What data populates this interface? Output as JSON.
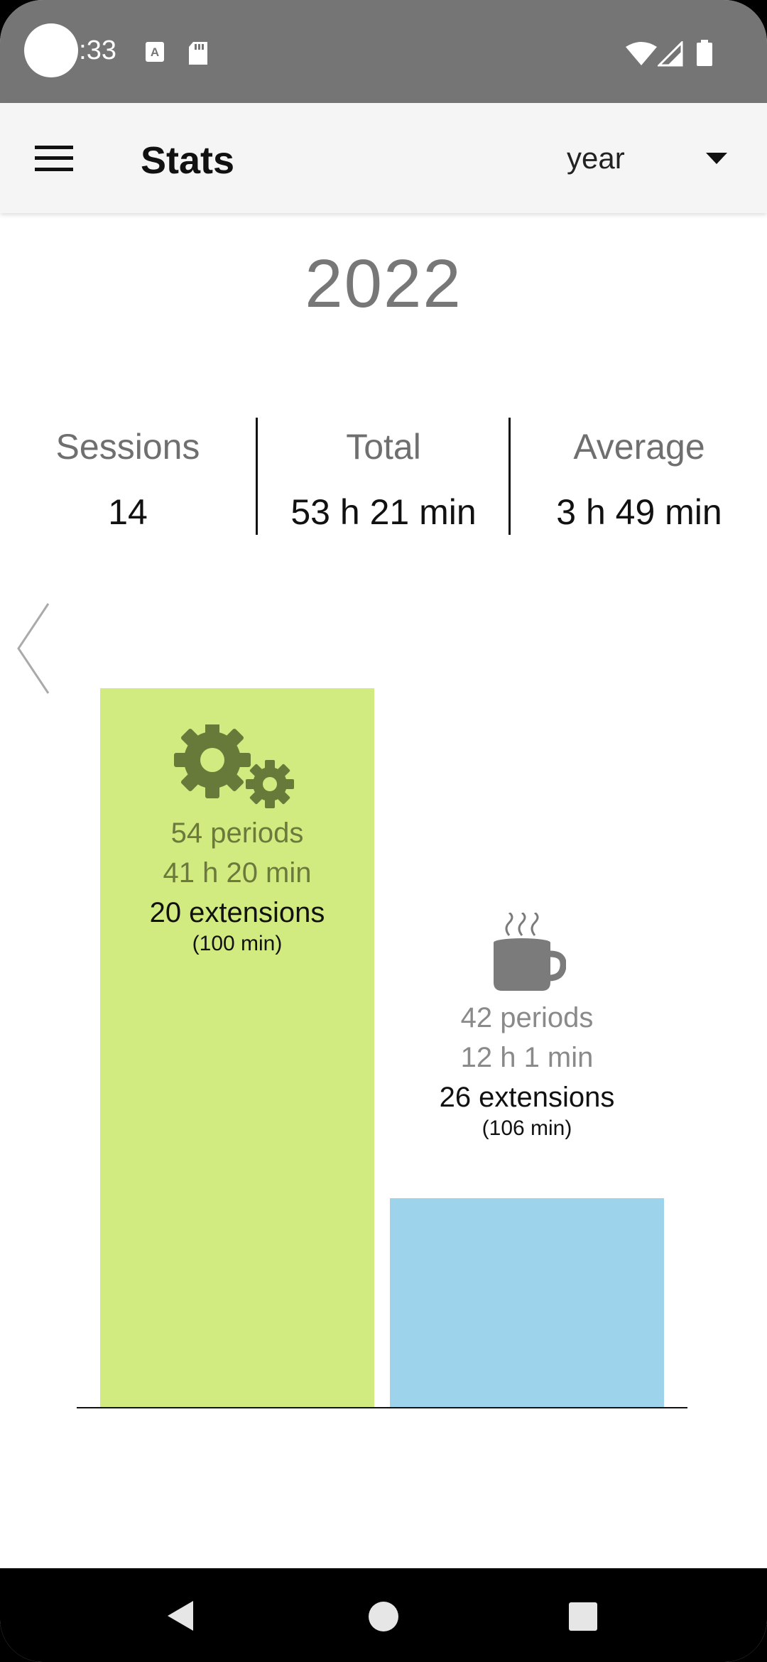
{
  "status_bar": {
    "time": "0:33",
    "icons": [
      "a-notification-icon",
      "sd-card-icon",
      "wifi-icon",
      "signal-icon",
      "battery-icon"
    ]
  },
  "app_bar": {
    "title": "Stats",
    "menu_icon": "hamburger-menu-icon",
    "period_select": {
      "value": "year"
    }
  },
  "period_title": "2022",
  "summary": {
    "sessions": {
      "label": "Sessions",
      "value": "14"
    },
    "total": {
      "label": "Total",
      "value": "53 h 21 min"
    },
    "average": {
      "label": "Average",
      "value": "3 h 49 min"
    }
  },
  "chart_data": {
    "type": "bar",
    "categories": [
      "Work",
      "Break"
    ],
    "values": [
      41.33,
      12.02
    ],
    "ylim": [
      0,
      41.33
    ],
    "bars": [
      {
        "icon": "gears-icon",
        "color": "#d2eb80",
        "text_color": "#6b7a3c",
        "icon_color": "#687a3a",
        "periods": "54 periods",
        "duration": "41 h 20 min",
        "extensions": "20 extensions",
        "extension_minutes": "(100 min)"
      },
      {
        "icon": "coffee-mug-icon",
        "color": "#9dd4ec",
        "text_color": "#8a8a8a",
        "icon_color": "#7b7b7b",
        "periods": "42 periods",
        "duration": "12 h 1 min",
        "extensions": "26 extensions",
        "extension_minutes": "(106 min)"
      }
    ]
  },
  "nav_bar": {
    "icons": [
      "back-icon",
      "home-icon",
      "recents-icon"
    ]
  }
}
